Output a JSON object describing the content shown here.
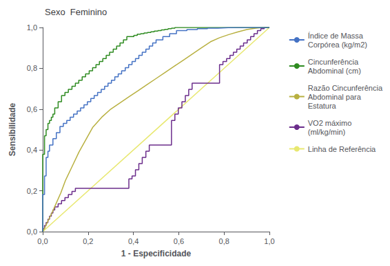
{
  "chart_data": {
    "type": "line",
    "title": "Sexo  Feminino",
    "x_label": "1 - Especificidade",
    "y_label": "Sensibilidade",
    "xlim": [
      0.0,
      1.0
    ],
    "ylim": [
      0.0,
      1.0
    ],
    "xticks": [
      {
        "value": 0.0,
        "label": "0,0"
      },
      {
        "value": 0.2,
        "label": "0,2"
      },
      {
        "value": 0.4,
        "label": "0,4"
      },
      {
        "value": 0.6,
        "label": "0,6"
      },
      {
        "value": 0.8,
        "label": "0,8"
      },
      {
        "value": 1.0,
        "label": "1,0"
      }
    ],
    "yticks": [
      {
        "value": 0.0,
        "label": "0,0"
      },
      {
        "value": 0.2,
        "label": "0,2"
      },
      {
        "value": 0.4,
        "label": "0,4"
      },
      {
        "value": 0.6,
        "label": "0,6"
      },
      {
        "value": 0.8,
        "label": "0,8"
      },
      {
        "value": 1.0,
        "label": "1,0"
      }
    ],
    "grid": false,
    "legend": "right",
    "series": [
      {
        "name": "Índice de Massa\nCorpórea (kg/m2)",
        "color": "#4472c4",
        "x": [
          0.0,
          0.0,
          0.008,
          0.008,
          0.015,
          0.015,
          0.023,
          0.023,
          0.03,
          0.03,
          0.045,
          0.045,
          0.06,
          0.06,
          0.076,
          0.076,
          0.091,
          0.091,
          0.106,
          0.106,
          0.121,
          0.121,
          0.136,
          0.136,
          0.152,
          0.152,
          0.167,
          0.167,
          0.182,
          0.182,
          0.197,
          0.197,
          0.212,
          0.212,
          0.227,
          0.227,
          0.242,
          0.242,
          0.258,
          0.258,
          0.273,
          0.273,
          0.288,
          0.288,
          0.303,
          0.303,
          0.318,
          0.318,
          0.333,
          0.333,
          0.348,
          0.348,
          0.364,
          0.364,
          0.379,
          0.379,
          0.394,
          0.394,
          0.409,
          0.409,
          0.424,
          0.424,
          0.439,
          0.439,
          0.455,
          0.455,
          0.47,
          0.47,
          0.485,
          0.485,
          0.5,
          0.5,
          0.53,
          0.53,
          0.56,
          0.56,
          0.59,
          0.59,
          0.636,
          0.636,
          0.682,
          0.682,
          0.727,
          0.727,
          0.773,
          0.773,
          0.818,
          0.818,
          0.864,
          0.864,
          0.909,
          0.909,
          0.955,
          0.955,
          1.0
        ],
        "values": [
          0.0,
          0.182,
          0.182,
          0.273,
          0.273,
          0.364,
          0.364,
          0.394,
          0.394,
          0.424,
          0.424,
          0.455,
          0.455,
          0.485,
          0.485,
          0.515,
          0.515,
          0.53,
          0.53,
          0.545,
          0.545,
          0.561,
          0.561,
          0.576,
          0.576,
          0.591,
          0.591,
          0.606,
          0.606,
          0.621,
          0.621,
          0.636,
          0.636,
          0.652,
          0.652,
          0.667,
          0.667,
          0.682,
          0.682,
          0.697,
          0.697,
          0.712,
          0.712,
          0.727,
          0.727,
          0.742,
          0.742,
          0.758,
          0.758,
          0.773,
          0.773,
          0.788,
          0.788,
          0.803,
          0.803,
          0.818,
          0.818,
          0.833,
          0.833,
          0.848,
          0.848,
          0.864,
          0.864,
          0.879,
          0.879,
          0.894,
          0.894,
          0.909,
          0.909,
          0.924,
          0.924,
          0.939,
          0.939,
          0.955,
          0.955,
          0.97,
          0.97,
          0.985,
          0.985,
          0.99,
          0.99,
          0.994,
          0.994,
          0.997,
          0.997,
          0.999,
          0.999,
          1.0,
          1.0,
          1.0,
          1.0,
          1.0,
          1.0,
          1.0,
          1.0
        ]
      },
      {
        "name": "Cincunferência\nAbdominal (cm)",
        "color": "#2e8b20",
        "x": [
          0.0,
          0.0,
          0.008,
          0.008,
          0.015,
          0.015,
          0.023,
          0.023,
          0.03,
          0.03,
          0.038,
          0.038,
          0.045,
          0.045,
          0.053,
          0.053,
          0.068,
          0.068,
          0.083,
          0.083,
          0.098,
          0.098,
          0.113,
          0.113,
          0.129,
          0.129,
          0.144,
          0.144,
          0.159,
          0.159,
          0.174,
          0.174,
          0.189,
          0.189,
          0.205,
          0.205,
          0.22,
          0.22,
          0.235,
          0.235,
          0.25,
          0.25,
          0.265,
          0.265,
          0.28,
          0.28,
          0.295,
          0.295,
          0.311,
          0.311,
          0.326,
          0.326,
          0.341,
          0.341,
          0.356,
          0.356,
          0.371,
          0.371,
          0.386,
          0.386,
          0.402,
          0.402,
          0.417,
          0.417,
          0.432,
          0.432,
          0.447,
          0.447,
          0.462,
          0.462,
          0.477,
          0.477,
          0.492,
          0.492,
          0.508,
          0.508,
          0.523,
          0.523,
          0.538,
          0.538,
          0.553,
          0.553,
          0.568,
          0.568,
          0.583,
          0.583,
          0.598,
          0.598,
          0.614,
          0.614,
          0.629,
          0.629,
          0.644,
          0.644,
          0.659,
          0.659,
          0.674,
          0.674,
          0.689,
          0.689,
          0.72,
          0.72,
          0.75,
          0.75,
          0.78,
          0.78,
          0.811,
          0.811,
          0.841,
          0.841,
          0.871,
          0.871,
          0.902,
          0.902,
          0.932,
          0.932,
          0.962,
          0.962,
          1.0
        ],
        "values": [
          0.0,
          0.379,
          0.379,
          0.47,
          0.47,
          0.5,
          0.5,
          0.53,
          0.53,
          0.545,
          0.545,
          0.561,
          0.561,
          0.576,
          0.576,
          0.606,
          0.606,
          0.636,
          0.636,
          0.667,
          0.667,
          0.682,
          0.682,
          0.697,
          0.697,
          0.712,
          0.712,
          0.727,
          0.727,
          0.742,
          0.742,
          0.758,
          0.758,
          0.773,
          0.773,
          0.788,
          0.788,
          0.803,
          0.803,
          0.818,
          0.818,
          0.833,
          0.833,
          0.848,
          0.848,
          0.864,
          0.864,
          0.879,
          0.879,
          0.894,
          0.894,
          0.909,
          0.909,
          0.924,
          0.924,
          0.939,
          0.939,
          0.955,
          0.955,
          0.955,
          0.955,
          0.961,
          0.961,
          0.967,
          0.967,
          0.97,
          0.97,
          0.973,
          0.973,
          0.976,
          0.976,
          0.979,
          0.979,
          0.982,
          0.982,
          0.985,
          0.985,
          0.988,
          0.988,
          0.991,
          0.991,
          0.994,
          0.994,
          0.997,
          0.997,
          1.0,
          1.0,
          1.0,
          1.0,
          1.0,
          1.0,
          1.0,
          1.0,
          1.0,
          1.0,
          1.0,
          1.0,
          1.0,
          1.0,
          1.0,
          1.0,
          1.0,
          1.0,
          1.0,
          1.0,
          1.0,
          1.0,
          1.0,
          1.0,
          1.0,
          1.0,
          1.0,
          1.0,
          1.0,
          1.0,
          1.0,
          1.0,
          1.0,
          1.0
        ]
      },
      {
        "name": "Razão Cincunferência\nAbdominal para\nEstatura",
        "color": "#b8b040",
        "x": [
          0.0,
          0.01,
          0.02,
          0.04,
          0.06,
          0.08,
          0.1,
          0.13,
          0.16,
          0.19,
          0.22,
          0.26,
          0.3,
          0.34,
          0.38,
          0.42,
          0.46,
          0.5,
          0.54,
          0.58,
          0.62,
          0.66,
          0.7,
          0.74,
          0.78,
          0.82,
          0.86,
          0.9,
          0.94,
          0.97,
          1.0
        ],
        "values": [
          0.0,
          0.02,
          0.045,
          0.09,
          0.14,
          0.19,
          0.25,
          0.32,
          0.39,
          0.45,
          0.51,
          0.56,
          0.6,
          0.63,
          0.66,
          0.69,
          0.72,
          0.75,
          0.78,
          0.81,
          0.84,
          0.87,
          0.9,
          0.93,
          0.95,
          0.965,
          0.978,
          0.99,
          0.997,
          1.0,
          1.0
        ]
      },
      {
        "name": "VO2 máximo\n(ml/kg/min)",
        "color": "#6b2d8b",
        "x": [
          0.0,
          0.0,
          0.008,
          0.008,
          0.015,
          0.015,
          0.023,
          0.023,
          0.03,
          0.03,
          0.038,
          0.038,
          0.045,
          0.045,
          0.053,
          0.053,
          0.068,
          0.068,
          0.083,
          0.083,
          0.098,
          0.098,
          0.113,
          0.113,
          0.129,
          0.129,
          0.144,
          0.144,
          0.38,
          0.38,
          0.394,
          0.394,
          0.409,
          0.409,
          0.424,
          0.424,
          0.439,
          0.439,
          0.455,
          0.455,
          0.47,
          0.47,
          0.568,
          0.568,
          0.583,
          0.583,
          0.598,
          0.598,
          0.614,
          0.614,
          0.629,
          0.629,
          0.644,
          0.644,
          0.659,
          0.659,
          0.78,
          0.78,
          0.795,
          0.795,
          0.811,
          0.811,
          0.826,
          0.826,
          0.841,
          0.841,
          0.856,
          0.856,
          0.871,
          0.871,
          0.886,
          0.886,
          0.902,
          0.902,
          0.917,
          0.917,
          0.932,
          0.932,
          0.947,
          0.947,
          0.962,
          0.962,
          0.977,
          0.977,
          0.992,
          0.992,
          1.0
        ],
        "values": [
          0.0,
          0.015,
          0.015,
          0.03,
          0.03,
          0.045,
          0.045,
          0.061,
          0.061,
          0.076,
          0.076,
          0.091,
          0.091,
          0.106,
          0.106,
          0.121,
          0.121,
          0.136,
          0.136,
          0.152,
          0.152,
          0.167,
          0.167,
          0.182,
          0.182,
          0.197,
          0.197,
          0.212,
          0.212,
          0.258,
          0.258,
          0.273,
          0.273,
          0.303,
          0.303,
          0.333,
          0.333,
          0.364,
          0.364,
          0.394,
          0.394,
          0.424,
          0.424,
          0.545,
          0.545,
          0.576,
          0.576,
          0.606,
          0.606,
          0.636,
          0.636,
          0.667,
          0.667,
          0.697,
          0.697,
          0.727,
          0.727,
          0.818,
          0.818,
          0.833,
          0.833,
          0.848,
          0.848,
          0.864,
          0.864,
          0.879,
          0.879,
          0.894,
          0.894,
          0.909,
          0.909,
          0.924,
          0.924,
          0.939,
          0.939,
          0.955,
          0.955,
          0.97,
          0.97,
          0.985,
          0.985,
          0.994,
          0.994,
          1.0,
          1.0,
          1.0,
          1.0
        ]
      },
      {
        "name": "Linha de Referência",
        "color": "#e8e870",
        "x": [
          0.0,
          1.0
        ],
        "values": [
          0.0,
          1.0
        ]
      }
    ]
  }
}
